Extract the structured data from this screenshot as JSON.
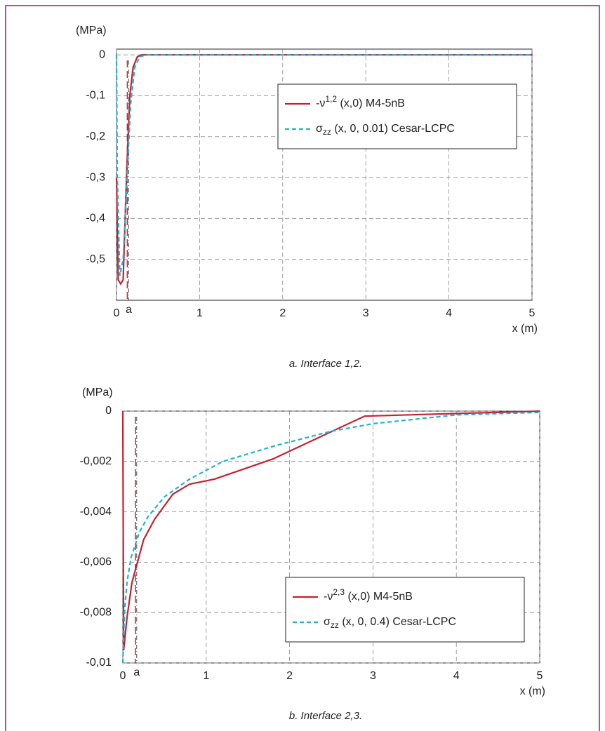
{
  "chart_data": [
    {
      "type": "line",
      "y_label": "(MPa)",
      "x_label": "x (m)",
      "caption": "a. Interface 1,2.",
      "xlim": [
        0,
        5
      ],
      "xticks": [
        0,
        1,
        2,
        3,
        4,
        5
      ],
      "ylim": [
        -0.6,
        0.014
      ],
      "yticks": [
        0,
        {
          "value": -0.1,
          "label": "-0,1"
        },
        {
          "value": -0.2,
          "label": "-0,2"
        },
        {
          "value": -0.3,
          "label": "-0,3"
        },
        {
          "value": -0.4,
          "label": "-0,4"
        },
        {
          "value": -0.5,
          "label": "-0,5"
        }
      ],
      "grid": true,
      "legend": "upper right",
      "annotations": [
        {
          "text": "a",
          "x": 0.13
        }
      ],
      "series": [
        {
          "name": [
            "-ν",
            "1,2",
            " (x,0) M4-5nB"
          ],
          "script": "sup",
          "color": "#c8202f",
          "style": "solid",
          "x": [
            0,
            0.02,
            0.05,
            0.08,
            0.12,
            0.16,
            0.2,
            0.25,
            0.3,
            5
          ],
          "values": [
            -0.3,
            -0.55,
            -0.56,
            -0.55,
            -0.3,
            -0.1,
            -0.03,
            -0.005,
            0,
            0
          ]
        },
        {
          "name": [
            "σ",
            "zz",
            " (x, 0, 0.01) Cesar-LCPC"
          ],
          "script": "sub",
          "color": "#1fb3d0",
          "style": "dashed",
          "x": [
            0,
            0.01,
            0.04,
            0.08,
            0.12,
            0.17,
            0.22,
            0.28,
            0.35,
            5
          ],
          "values": [
            0,
            -0.3,
            -0.54,
            -0.5,
            -0.33,
            -0.12,
            -0.03,
            -0.005,
            0,
            0
          ]
        }
      ]
    },
    {
      "type": "line",
      "y_label": "(MPa)",
      "x_label": "x (m)",
      "caption": "b. Interface 2,3.",
      "xlim": [
        0,
        5
      ],
      "xticks": [
        0,
        1,
        2,
        3,
        4,
        5
      ],
      "ylim": [
        -0.01,
        0
      ],
      "yticks": [
        0,
        {
          "value": -0.002,
          "label": "-0,002"
        },
        {
          "value": -0.004,
          "label": "-0,004"
        },
        {
          "value": -0.006,
          "label": "-0,006"
        },
        {
          "value": -0.008,
          "label": "-0,008"
        },
        {
          "value": -0.01,
          "label": "-0,01"
        }
      ],
      "grid": true,
      "legend": "lower right",
      "annotations": [
        {
          "text": "a",
          "x": 0.15
        }
      ],
      "series": [
        {
          "name": [
            "-ν",
            "2,3",
            " (x,0) M4-5nB"
          ],
          "script": "sup",
          "color": "#c8202f",
          "style": "solid",
          "x": [
            0,
            0.01,
            0.05,
            0.11,
            0.25,
            0.38,
            0.6,
            0.8,
            1.1,
            1.8,
            2.9,
            5
          ],
          "values": [
            0,
            -0.0095,
            -0.0082,
            -0.0068,
            -0.0051,
            -0.0043,
            -0.0033,
            -0.0029,
            -0.0027,
            -0.0019,
            -0.0002,
            0
          ]
        },
        {
          "name": [
            "σ",
            "zz",
            " (x, 0, 0.4) Cesar-LCPC"
          ],
          "script": "sub",
          "color": "#1fb3d0",
          "style": "dashed",
          "x": [
            0,
            0.02,
            0.05,
            0.1,
            0.2,
            0.3,
            0.5,
            0.8,
            1.2,
            1.8,
            2.5,
            3,
            4,
            5
          ],
          "values": [
            -0.01,
            -0.008,
            -0.0068,
            -0.0058,
            -0.0048,
            -0.0042,
            -0.0034,
            -0.0027,
            -0.002,
            -0.0014,
            -0.0008,
            -0.0005,
            -0.00015,
            -5e-05
          ]
        }
      ]
    }
  ]
}
